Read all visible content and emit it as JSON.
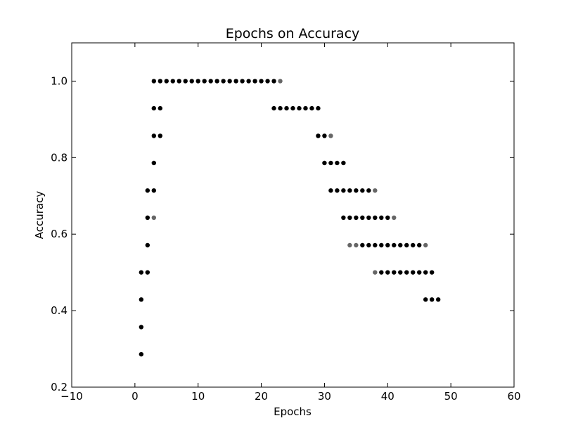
{
  "chart_data": {
    "type": "scatter",
    "title": "Epochs on Accuracy",
    "xlabel": "Epochs",
    "ylabel": "Accuracy",
    "xlim": [
      -10,
      60
    ],
    "ylim": [
      0.2,
      1.1
    ],
    "xticks": [
      -10,
      0,
      10,
      20,
      30,
      40,
      50,
      60
    ],
    "xtick_labels": [
      "−10",
      "0",
      "10",
      "20",
      "30",
      "40",
      "50",
      "60"
    ],
    "yticks": [
      0.2,
      0.4,
      0.6,
      0.8,
      1.0
    ],
    "ytick_labels": [
      "0.2",
      "0.4",
      "0.6",
      "0.8",
      "1.0"
    ],
    "grid": false,
    "marker_color": "#000000",
    "faint_marker_color": "#666666",
    "points": [
      {
        "x": 1,
        "y": 0.286
      },
      {
        "x": 1,
        "y": 0.357
      },
      {
        "x": 1,
        "y": 0.429
      },
      {
        "x": 1,
        "y": 0.5
      },
      {
        "x": 2,
        "y": 0.5
      },
      {
        "x": 2,
        "y": 0.571
      },
      {
        "x": 2,
        "y": 0.643
      },
      {
        "x": 2,
        "y": 0.714
      },
      {
        "x": 3,
        "y": 0.643,
        "faint": true
      },
      {
        "x": 3,
        "y": 0.714
      },
      {
        "x": 3,
        "y": 0.786
      },
      {
        "x": 3,
        "y": 0.857
      },
      {
        "x": 3,
        "y": 0.929
      },
      {
        "x": 3,
        "y": 1.0
      },
      {
        "x": 4,
        "y": 0.857
      },
      {
        "x": 4,
        "y": 0.929
      },
      {
        "x": 4,
        "y": 1.0
      },
      {
        "x": 5,
        "y": 1.0
      },
      {
        "x": 6,
        "y": 1.0
      },
      {
        "x": 7,
        "y": 1.0
      },
      {
        "x": 8,
        "y": 1.0
      },
      {
        "x": 9,
        "y": 1.0
      },
      {
        "x": 10,
        "y": 1.0
      },
      {
        "x": 11,
        "y": 1.0
      },
      {
        "x": 12,
        "y": 1.0
      },
      {
        "x": 13,
        "y": 1.0
      },
      {
        "x": 14,
        "y": 1.0
      },
      {
        "x": 15,
        "y": 1.0
      },
      {
        "x": 16,
        "y": 1.0
      },
      {
        "x": 17,
        "y": 1.0
      },
      {
        "x": 18,
        "y": 1.0
      },
      {
        "x": 19,
        "y": 1.0
      },
      {
        "x": 20,
        "y": 1.0
      },
      {
        "x": 21,
        "y": 1.0
      },
      {
        "x": 22,
        "y": 1.0
      },
      {
        "x": 23,
        "y": 1.0,
        "faint": true
      },
      {
        "x": 22,
        "y": 0.929
      },
      {
        "x": 23,
        "y": 0.929
      },
      {
        "x": 24,
        "y": 0.929
      },
      {
        "x": 25,
        "y": 0.929
      },
      {
        "x": 26,
        "y": 0.929
      },
      {
        "x": 27,
        "y": 0.929
      },
      {
        "x": 28,
        "y": 0.929
      },
      {
        "x": 29,
        "y": 0.929
      },
      {
        "x": 29,
        "y": 0.857
      },
      {
        "x": 30,
        "y": 0.857
      },
      {
        "x": 31,
        "y": 0.857,
        "faint": true
      },
      {
        "x": 30,
        "y": 0.786
      },
      {
        "x": 31,
        "y": 0.786
      },
      {
        "x": 32,
        "y": 0.786
      },
      {
        "x": 33,
        "y": 0.786
      },
      {
        "x": 31,
        "y": 0.714
      },
      {
        "x": 32,
        "y": 0.714
      },
      {
        "x": 33,
        "y": 0.714
      },
      {
        "x": 34,
        "y": 0.714
      },
      {
        "x": 35,
        "y": 0.714
      },
      {
        "x": 36,
        "y": 0.714
      },
      {
        "x": 37,
        "y": 0.714
      },
      {
        "x": 38,
        "y": 0.714,
        "faint": true
      },
      {
        "x": 33,
        "y": 0.643
      },
      {
        "x": 34,
        "y": 0.643
      },
      {
        "x": 35,
        "y": 0.643
      },
      {
        "x": 36,
        "y": 0.643
      },
      {
        "x": 37,
        "y": 0.643
      },
      {
        "x": 38,
        "y": 0.643
      },
      {
        "x": 39,
        "y": 0.643
      },
      {
        "x": 40,
        "y": 0.643
      },
      {
        "x": 41,
        "y": 0.643,
        "faint": true
      },
      {
        "x": 34,
        "y": 0.571,
        "faint": true
      },
      {
        "x": 35,
        "y": 0.571,
        "faint": true
      },
      {
        "x": 36,
        "y": 0.571
      },
      {
        "x": 37,
        "y": 0.571
      },
      {
        "x": 38,
        "y": 0.571
      },
      {
        "x": 39,
        "y": 0.571
      },
      {
        "x": 40,
        "y": 0.571
      },
      {
        "x": 41,
        "y": 0.571
      },
      {
        "x": 42,
        "y": 0.571
      },
      {
        "x": 43,
        "y": 0.571
      },
      {
        "x": 44,
        "y": 0.571
      },
      {
        "x": 45,
        "y": 0.571
      },
      {
        "x": 46,
        "y": 0.571,
        "faint": true
      },
      {
        "x": 38,
        "y": 0.5,
        "faint": true
      },
      {
        "x": 39,
        "y": 0.5
      },
      {
        "x": 40,
        "y": 0.5
      },
      {
        "x": 41,
        "y": 0.5
      },
      {
        "x": 42,
        "y": 0.5
      },
      {
        "x": 43,
        "y": 0.5
      },
      {
        "x": 44,
        "y": 0.5
      },
      {
        "x": 45,
        "y": 0.5
      },
      {
        "x": 46,
        "y": 0.5
      },
      {
        "x": 47,
        "y": 0.5
      },
      {
        "x": 46,
        "y": 0.429
      },
      {
        "x": 47,
        "y": 0.429
      },
      {
        "x": 48,
        "y": 0.429
      }
    ]
  }
}
